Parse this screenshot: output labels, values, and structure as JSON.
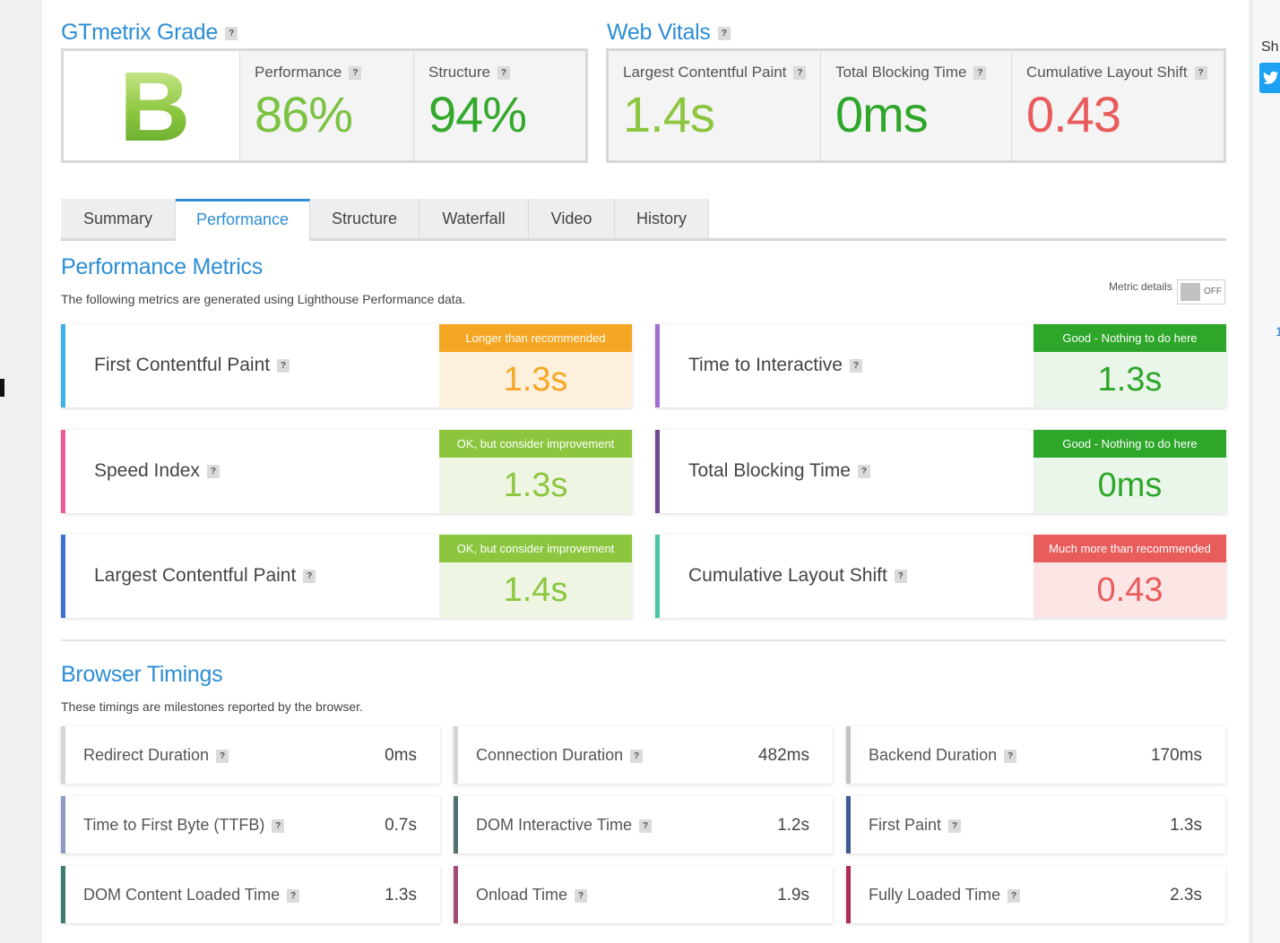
{
  "grade_section": {
    "title": "GTmetrix Grade",
    "grade": "B",
    "performance": {
      "label": "Performance",
      "value": "86%"
    },
    "structure": {
      "label": "Structure",
      "value": "94%"
    }
  },
  "web_vitals": {
    "title": "Web Vitals",
    "lcp": {
      "label": "Largest Contentful Paint",
      "value": "1.4s"
    },
    "tbt": {
      "label": "Total Blocking Time",
      "value": "0ms"
    },
    "cls": {
      "label": "Cumulative Layout Shift",
      "value": "0.43"
    }
  },
  "tabs": [
    "Summary",
    "Performance",
    "Structure",
    "Waterfall",
    "Video",
    "History"
  ],
  "active_tab": "Performance",
  "performance_metrics": {
    "title": "Performance Metrics",
    "description": "The following metrics are generated using Lighthouse Performance data.",
    "toggle_label": "Metric details",
    "toggle_state": "OFF",
    "metrics": [
      {
        "name": "First Contentful Paint",
        "badge": "Longer than recommended",
        "value": "1.3s",
        "status": "orange"
      },
      {
        "name": "Time to Interactive",
        "badge": "Good - Nothing to do here",
        "value": "1.3s",
        "status": "green"
      },
      {
        "name": "Speed Index",
        "badge": "OK, but consider improvement",
        "value": "1.3s",
        "status": "lime"
      },
      {
        "name": "Total Blocking Time",
        "badge": "Good - Nothing to do here",
        "value": "0ms",
        "status": "green"
      },
      {
        "name": "Largest Contentful Paint",
        "badge": "OK, but consider improvement",
        "value": "1.4s",
        "status": "lime"
      },
      {
        "name": "Cumulative Layout Shift",
        "badge": "Much more than recommended",
        "value": "0.43",
        "status": "red"
      }
    ]
  },
  "browser_timings": {
    "title": "Browser Timings",
    "description": "These timings are milestones reported by the browser.",
    "items": [
      {
        "label": "Redirect Duration",
        "value": "0ms"
      },
      {
        "label": "Connection Duration",
        "value": "482ms"
      },
      {
        "label": "Backend Duration",
        "value": "170ms"
      },
      {
        "label": "Time to First Byte (TTFB)",
        "value": "0.7s"
      },
      {
        "label": "DOM Interactive Time",
        "value": "1.2s"
      },
      {
        "label": "First Paint",
        "value": "1.3s"
      },
      {
        "label": "DOM Content Loaded Time",
        "value": "1.3s"
      },
      {
        "label": "Onload Time",
        "value": "1.9s"
      },
      {
        "label": "Fully Loaded Time",
        "value": "2.3s"
      }
    ]
  },
  "sidebar": {
    "share_label": "Sh",
    "tweet_icon": "twitter-icon",
    "count": "1"
  },
  "help_symbol": "?",
  "colors": {
    "accent": "#2d8ed6",
    "orange": "#f5a623",
    "green": "#2ea62a",
    "lime": "#8cc63f",
    "red": "#e85c5c"
  }
}
